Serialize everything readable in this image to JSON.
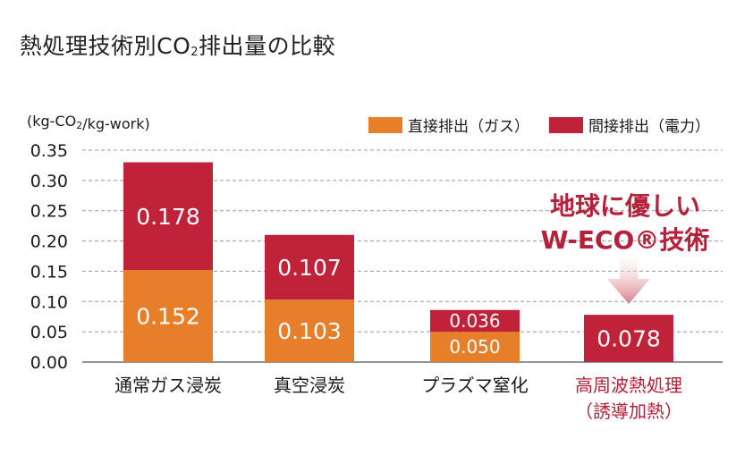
{
  "title": "熱処理技術別CO₂排出量の比較",
  "colors": {
    "direct": "#e67e2a",
    "indirect": "#c0223a",
    "text": "#1a1a1a",
    "highlight": "#b5203a",
    "grid": "#999999"
  },
  "chart_data": {
    "type": "bar",
    "stacked": true,
    "ylabel": "(kg-CO₂/kg-work)",
    "ylim": [
      0,
      0.35
    ],
    "yticks": [
      "0.00",
      "0.05",
      "0.10",
      "0.15",
      "0.20",
      "0.25",
      "0.30",
      "0.35"
    ],
    "grid": true,
    "legend_position": "top-right",
    "categories": [
      {
        "label": "通常ガス浸炭",
        "sublabel": "",
        "highlight": false
      },
      {
        "label": "真空浸炭",
        "sublabel": "",
        "highlight": false
      },
      {
        "label": "プラズマ窒化",
        "sublabel": "",
        "highlight": false
      },
      {
        "label": "高周波熱処理",
        "sublabel": "（誘導加熱）",
        "highlight": true
      }
    ],
    "series": [
      {
        "name": "直接排出（ガス）",
        "color": "#e67e2a",
        "values": [
          0.152,
          0.103,
          0.05,
          0.0
        ],
        "labels": [
          "0.152",
          "0.103",
          "0.050",
          ""
        ]
      },
      {
        "name": "間接排出（電力）",
        "color": "#c0223a",
        "values": [
          0.178,
          0.107,
          0.036,
          0.078
        ],
        "labels": [
          "0.178",
          "0.107",
          "0.036",
          "0.078"
        ]
      }
    ],
    "annotation": {
      "lines": [
        "地球に優しい",
        "W-ECO®技術"
      ],
      "target_category": 3
    }
  }
}
